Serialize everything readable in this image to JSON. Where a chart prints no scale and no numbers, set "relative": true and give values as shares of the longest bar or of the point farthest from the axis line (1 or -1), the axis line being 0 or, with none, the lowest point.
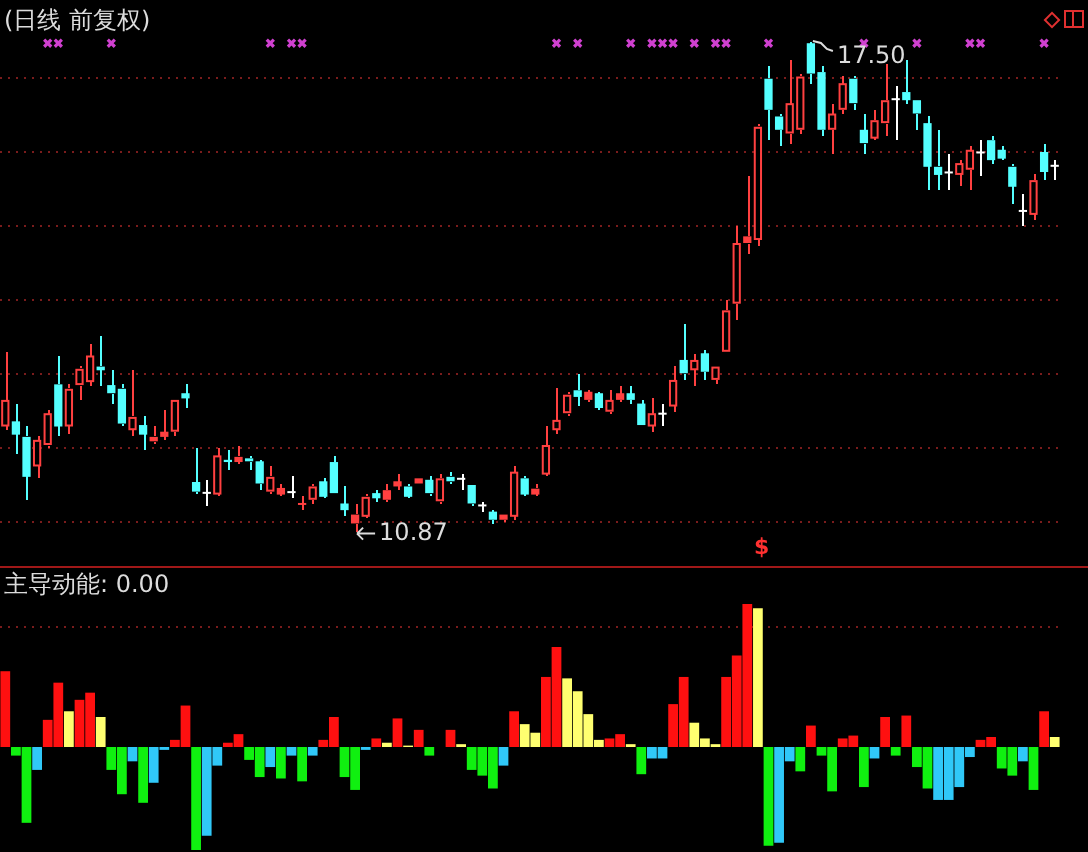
{
  "chart_data": [
    {
      "type": "candlestick",
      "title": "(日线 前复权)",
      "categories": [
        null,
        null,
        null,
        null,
        null,
        null,
        null,
        null,
        null,
        null,
        null,
        null,
        null,
        null,
        null,
        null,
        null,
        null,
        null,
        null,
        null,
        null,
        null,
        null,
        null,
        null,
        null,
        null,
        null,
        null,
        null,
        null,
        null,
        null,
        null,
        null,
        null,
        null,
        null,
        null,
        null,
        null,
        null,
        null,
        null,
        null,
        null,
        null,
        null,
        null,
        null,
        null,
        null,
        null,
        null,
        null,
        null,
        null,
        null,
        null,
        null,
        null,
        null,
        null,
        null,
        null,
        null,
        null,
        null,
        null,
        null,
        null,
        null,
        null,
        null,
        null,
        null,
        null,
        null,
        null,
        null,
        null,
        null,
        null,
        null,
        null,
        null,
        null,
        null,
        null,
        null,
        null,
        null,
        null,
        null,
        null,
        null,
        null,
        null,
        null
      ],
      "ohlc": [
        [
          12.29,
          13.31,
          12.24,
          12.65
        ],
        [
          12.36,
          12.6,
          11.93,
          12.18
        ],
        [
          12.15,
          12.29,
          11.3,
          11.61
        ],
        [
          11.75,
          12.15,
          11.59,
          12.11
        ],
        [
          12.04,
          12.51,
          12.0,
          12.47
        ],
        [
          12.86,
          13.23,
          12.15,
          12.29
        ],
        [
          12.29,
          12.87,
          12.2,
          12.8
        ],
        [
          12.85,
          13.1,
          12.65,
          13.07
        ],
        [
          12.89,
          13.41,
          12.85,
          13.25
        ],
        [
          13.1,
          13.5,
          12.83,
          13.05
        ],
        [
          12.85,
          13.05,
          12.6,
          12.74
        ],
        [
          12.8,
          12.87,
          12.29,
          12.33
        ],
        [
          12.24,
          13.05,
          12.15,
          12.42
        ],
        [
          12.31,
          12.42,
          11.97,
          12.18
        ],
        [
          12.09,
          12.29,
          12.06,
          12.15
        ],
        [
          12.15,
          12.51,
          12.11,
          12.22
        ],
        [
          12.22,
          12.65,
          12.15,
          12.65
        ],
        [
          12.74,
          12.87,
          12.54,
          12.67
        ],
        [
          11.54,
          12.0,
          11.39,
          11.41
        ],
        [
          11.38,
          11.57,
          11.21,
          11.38
        ],
        [
          11.37,
          11.99,
          11.34,
          11.9
        ],
        [
          11.84,
          11.97,
          11.7,
          11.81
        ],
        [
          11.81,
          12.04,
          11.79,
          11.88
        ],
        [
          11.86,
          11.88,
          11.7,
          11.82
        ],
        [
          11.82,
          11.84,
          11.43,
          11.52
        ],
        [
          11.41,
          11.75,
          11.37,
          11.61
        ],
        [
          11.37,
          11.5,
          11.34,
          11.46
        ],
        [
          11.39,
          11.61,
          11.32,
          11.39
        ],
        [
          11.23,
          11.34,
          11.16,
          11.25
        ],
        [
          11.3,
          11.5,
          11.25,
          11.48
        ],
        [
          11.55,
          11.59,
          11.32,
          11.34
        ],
        [
          11.81,
          11.88,
          11.37,
          11.39
        ],
        [
          11.25,
          11.48,
          11.07,
          11.16
        ],
        [
          10.98,
          11.25,
          10.87,
          11.1
        ],
        [
          11.07,
          11.37,
          11.05,
          11.34
        ],
        [
          11.39,
          11.43,
          11.28,
          11.32
        ],
        [
          11.3,
          11.5,
          11.28,
          11.43
        ],
        [
          11.48,
          11.64,
          11.43,
          11.55
        ],
        [
          11.48,
          11.52,
          11.32,
          11.34
        ],
        [
          11.52,
          11.6,
          11.5,
          11.59
        ],
        [
          11.57,
          11.61,
          11.34,
          11.39
        ],
        [
          11.28,
          11.64,
          11.25,
          11.59
        ],
        [
          11.61,
          11.68,
          11.52,
          11.55
        ],
        [
          11.57,
          11.64,
          11.43,
          11.57
        ],
        [
          11.5,
          11.52,
          11.21,
          11.25
        ],
        [
          11.21,
          11.28,
          11.14,
          11.21
        ],
        [
          11.14,
          11.16,
          10.98,
          11.03
        ],
        [
          11.03,
          11.12,
          11.01,
          11.1
        ],
        [
          11.07,
          11.77,
          11.03,
          11.68
        ],
        [
          11.59,
          11.61,
          11.34,
          11.37
        ],
        [
          11.37,
          11.52,
          11.36,
          11.45
        ],
        [
          11.64,
          12.29,
          11.61,
          12.04
        ],
        [
          12.24,
          12.81,
          12.2,
          12.38
        ],
        [
          12.47,
          12.76,
          12.42,
          12.72
        ],
        [
          12.78,
          13.01,
          12.58,
          12.69
        ],
        [
          12.65,
          12.78,
          12.63,
          12.76
        ],
        [
          12.74,
          12.76,
          12.51,
          12.54
        ],
        [
          12.49,
          12.78,
          12.47,
          12.65
        ],
        [
          12.65,
          12.83,
          12.63,
          12.74
        ],
        [
          12.74,
          12.85,
          12.59,
          12.65
        ],
        [
          12.6,
          12.65,
          12.29,
          12.31
        ],
        [
          12.29,
          12.67,
          12.22,
          12.47
        ],
        [
          12.45,
          12.6,
          12.29,
          12.45
        ],
        [
          12.56,
          13.1,
          12.49,
          12.92
        ],
        [
          13.19,
          13.68,
          12.92,
          13.01
        ],
        [
          13.05,
          13.28,
          12.83,
          13.19
        ],
        [
          13.28,
          13.32,
          12.92,
          13.03
        ],
        [
          12.92,
          13.12,
          12.87,
          13.1
        ],
        [
          13.3,
          14.0,
          13.3,
          13.86
        ],
        [
          13.95,
          14.99,
          13.73,
          14.77
        ],
        [
          14.77,
          15.67,
          14.63,
          14.86
        ],
        [
          14.81,
          16.39,
          14.72,
          16.34
        ],
        [
          16.99,
          17.15,
          16.16,
          16.57
        ],
        [
          16.48,
          16.52,
          16.07,
          16.3
        ],
        [
          16.25,
          17.24,
          16.12,
          16.66
        ],
        [
          16.3,
          17.06,
          16.25,
          17.02
        ],
        [
          17.47,
          17.5,
          16.93,
          17.06
        ],
        [
          17.08,
          17.15,
          16.21,
          16.3
        ],
        [
          16.3,
          16.66,
          15.98,
          16.52
        ],
        [
          16.57,
          17.02,
          16.52,
          16.93
        ],
        [
          16.99,
          17.02,
          16.57,
          16.66
        ],
        [
          16.3,
          16.52,
          15.98,
          16.12
        ],
        [
          16.18,
          16.57,
          16.16,
          16.43
        ],
        [
          16.39,
          17.2,
          16.21,
          16.7
        ],
        [
          16.7,
          16.88,
          16.16,
          16.7
        ],
        [
          16.81,
          17.24,
          16.66,
          16.7
        ],
        [
          16.7,
          16.7,
          16.3,
          16.52
        ],
        [
          16.39,
          16.48,
          15.49,
          15.8
        ],
        [
          15.8,
          16.3,
          15.49,
          15.69
        ],
        [
          15.71,
          15.98,
          15.49,
          15.71
        ],
        [
          15.69,
          15.89,
          15.53,
          15.85
        ],
        [
          15.76,
          16.07,
          15.49,
          16.03
        ],
        [
          15.98,
          16.16,
          15.67,
          15.98
        ],
        [
          16.16,
          16.21,
          15.85,
          15.89
        ],
        [
          16.03,
          16.07,
          15.89,
          15.91
        ],
        [
          15.8,
          15.85,
          15.31,
          15.53
        ],
        [
          15.19,
          15.44,
          14.99,
          15.19
        ],
        [
          15.15,
          15.69,
          15.08,
          15.62
        ],
        [
          16.0,
          16.12,
          15.62,
          15.73
        ],
        [
          15.8,
          15.89,
          15.62,
          15.8
        ]
      ],
      "colors": [
        "#ff4040",
        "#54ffff",
        "#54ffff",
        "#ff4040",
        "#ff4040",
        "#54ffff",
        "#ff4040",
        "#ff4040",
        "#ff4040",
        "#54ffff",
        "#54ffff",
        "#54ffff",
        "#ff4040",
        "#54ffff",
        "#ff4040",
        "#ff4040",
        "#ff4040",
        "#54ffff",
        "#54ffff",
        "#ffffff",
        "#ff4040",
        "#54ffff",
        "#ff4040",
        "#54ffff",
        "#54ffff",
        "#ff4040",
        "#ff4040",
        "#ffffff",
        "#ff4040",
        "#ff4040",
        "#54ffff",
        "#54ffff",
        "#54ffff",
        "#ff4040",
        "#ff4040",
        "#54ffff",
        "#ff4040",
        "#ff4040",
        "#54ffff",
        "#ff4040",
        "#54ffff",
        "#ff4040",
        "#54ffff",
        "#ffffff",
        "#54ffff",
        "#ffffff",
        "#54ffff",
        "#ff4040",
        "#ff4040",
        "#54ffff",
        "#ff4040",
        "#ff4040",
        "#ff4040",
        "#ff4040",
        "#54ffff",
        "#ff4040",
        "#54ffff",
        "#ff4040",
        "#ff4040",
        "#54ffff",
        "#54ffff",
        "#ff4040",
        "#ffffff",
        "#ff4040",
        "#54ffff",
        "#ff4040",
        "#54ffff",
        "#ff4040",
        "#ff4040",
        "#ff4040",
        "#ff4040",
        "#ff4040",
        "#54ffff",
        "#54ffff",
        "#ff4040",
        "#ff4040",
        "#54ffff",
        "#54ffff",
        "#ff4040",
        "#ff4040",
        "#54ffff",
        "#54ffff",
        "#ff4040",
        "#ff4040",
        "#ffffff",
        "#54ffff",
        "#54ffff",
        "#54ffff",
        "#54ffff",
        "#ffffff",
        "#ff4040",
        "#ff4040",
        "#ffffff",
        "#54ffff",
        "#54ffff",
        "#54ffff",
        "#ffffff",
        "#ff4040",
        "#54ffff",
        "#ffffff"
      ],
      "series": [
        {
          "type": "scatter",
          "color": "#d040d0",
          "marker": "cross",
          "values": [
            null,
            null,
            null,
            null,
            17.47,
            17.47,
            null,
            null,
            null,
            null,
            17.47,
            null,
            null,
            null,
            null,
            null,
            null,
            null,
            null,
            null,
            null,
            null,
            null,
            null,
            null,
            17.47,
            null,
            17.47,
            17.47,
            null,
            null,
            null,
            null,
            null,
            null,
            null,
            null,
            null,
            null,
            null,
            null,
            null,
            null,
            null,
            null,
            null,
            null,
            null,
            null,
            null,
            null,
            null,
            17.47,
            null,
            17.47,
            null,
            null,
            null,
            null,
            17.47,
            null,
            17.47,
            17.47,
            17.47,
            null,
            17.47,
            null,
            17.47,
            17.47,
            null,
            null,
            null,
            17.47,
            null,
            null,
            null,
            null,
            null,
            null,
            null,
            null,
            17.47,
            null,
            null,
            null,
            null,
            17.47,
            null,
            null,
            null,
            null,
            17.47,
            17.47,
            null,
            null,
            null,
            null,
            null,
            17.47,
            null
          ]
        }
      ],
      "yticks": [
        {
          "value": 11,
          "label": null
        },
        {
          "value": 12,
          "label": null
        },
        {
          "value": 13,
          "label": null
        },
        {
          "value": 14,
          "label": null
        },
        {
          "value": 15,
          "label": null
        },
        {
          "value": 16,
          "label": null
        },
        {
          "value": 17,
          "label": null
        }
      ],
      "grid": "y",
      "tick_labels": false,
      "annotations": [
        {
          "text": "17.50",
          "y": 17.5
        },
        "10.87",
        "$"
      ]
    },
    {
      "type": "bar",
      "title": "主导动能: 0.00",
      "relative": true,
      "categories": [
        null,
        null,
        null,
        null,
        null,
        null,
        null,
        null,
        null,
        null,
        null,
        null,
        null,
        null,
        null,
        null,
        null,
        null,
        null,
        null,
        null,
        null,
        null,
        null,
        null,
        null,
        null,
        null,
        null,
        null,
        null,
        null,
        null,
        null,
        null,
        null,
        null,
        null,
        null,
        null,
        null,
        null,
        null,
        null,
        null,
        null,
        null,
        null,
        null,
        null,
        null,
        null,
        null,
        null,
        null,
        null,
        null,
        null,
        null,
        null,
        null,
        null,
        null,
        null,
        null,
        null,
        null,
        null,
        null,
        null,
        null,
        null,
        null,
        null,
        null,
        null,
        null,
        null,
        null,
        null,
        null,
        null,
        null,
        null,
        null,
        null,
        null,
        null,
        null,
        null,
        null,
        null,
        null,
        null,
        null,
        null,
        null,
        null,
        null,
        null
      ],
      "values": [
        0.53,
        -0.06,
        -0.53,
        -0.16,
        0.19,
        0.45,
        0.25,
        0.33,
        0.38,
        0.21,
        -0.16,
        -0.33,
        -0.1,
        -0.39,
        -0.25,
        -0.02,
        0.05,
        0.29,
        -0.72,
        -0.62,
        -0.13,
        0.03,
        0.09,
        -0.09,
        -0.21,
        -0.14,
        -0.22,
        -0.06,
        -0.24,
        -0.06,
        0.05,
        0.21,
        -0.21,
        -0.3,
        -0.02,
        0.06,
        0.03,
        0.2,
        0.01,
        0.12,
        -0.06,
        null,
        0.12,
        0.02,
        -0.16,
        -0.2,
        -0.29,
        -0.13,
        0.25,
        0.16,
        0.1,
        0.49,
        0.7,
        0.48,
        0.39,
        0.23,
        0.05,
        0.06,
        0.09,
        0.02,
        -0.19,
        -0.08,
        -0.08,
        0.3,
        0.49,
        0.17,
        0.06,
        0.02,
        0.49,
        0.64,
        1,
        0.97,
        -0.69,
        -0.67,
        -0.1,
        -0.17,
        0.15,
        -0.06,
        -0.31,
        0.06,
        0.08,
        -0.28,
        -0.08,
        0.21,
        -0.06,
        0.22,
        -0.14,
        -0.29,
        -0.37,
        -0.37,
        -0.28,
        -0.07,
        0.05,
        0.07,
        -0.15,
        -0.2,
        -0.1,
        -0.3,
        0.25,
        0.07
      ],
      "colors": [
        "#ff1010",
        "#10f010",
        "#10f010",
        "#30c8f8",
        "#ff1010",
        "#ff1010",
        "#ffff70",
        "#ff1010",
        "#ff1010",
        "#ffff70",
        "#10f010",
        "#10f010",
        "#30c8f8",
        "#10f010",
        "#30c8f8",
        "#30c8f8",
        "#ff1010",
        "#ff1010",
        "#10f010",
        "#30c8f8",
        "#30c8f8",
        "#ff1010",
        "#ff1010",
        "#10f010",
        "#10f010",
        "#30c8f8",
        "#10f010",
        "#30c8f8",
        "#10f010",
        "#30c8f8",
        "#ff1010",
        "#ff1010",
        "#10f010",
        "#10f010",
        "#30c8f8",
        "#ff1010",
        "#ffff70",
        "#ff1010",
        "#ffff70",
        "#ff1010",
        "#10f010",
        "#30c8f8",
        "#ff1010",
        "#ffff70",
        "#10f010",
        "#10f010",
        "#10f010",
        "#30c8f8",
        "#ff1010",
        "#ffff70",
        "#ffff70",
        "#ff1010",
        "#ff1010",
        "#ffff70",
        "#ffff70",
        "#ffff70",
        "#ffff70",
        "#ff1010",
        "#ff1010",
        "#ffff70",
        "#10f010",
        "#30c8f8",
        "#30c8f8",
        "#ff1010",
        "#ff1010",
        "#ffff70",
        "#ffff70",
        "#ffff70",
        "#ff1010",
        "#ff1010",
        "#ff1010",
        "#ffff70",
        "#10f010",
        "#30c8f8",
        "#30c8f8",
        "#10f010",
        "#ff1010",
        "#10f010",
        "#10f010",
        "#ff1010",
        "#ff1010",
        "#10f010",
        "#30c8f8",
        "#ff1010",
        "#10f010",
        "#ff1010",
        "#10f010",
        "#10f010",
        "#30c8f8",
        "#30c8f8",
        "#30c8f8",
        "#30c8f8",
        "#ff1010",
        "#ff1010",
        "#10f010",
        "#10f010",
        "#30c8f8",
        "#10f010",
        "#ff1010",
        "#ffff70"
      ],
      "ref_lines": [
        {
          "axis": "y",
          "value": 0.84,
          "color": "#7a1c1c",
          "line_style": "dotted"
        }
      ]
    }
  ]
}
